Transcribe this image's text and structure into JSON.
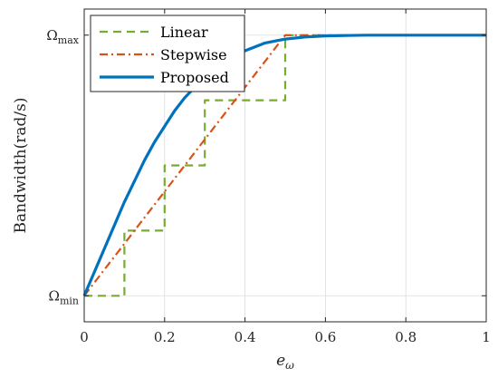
{
  "chart_data": {
    "type": "line",
    "title": "",
    "xlabel": "e",
    "xlabel_sub": "ω",
    "ylabel": "Bandwidth(rad/s)",
    "xlim": [
      0,
      1
    ],
    "ylim": [
      -0.1,
      1.1
    ],
    "xticks": [
      0,
      0.2,
      0.4,
      0.6,
      0.8,
      1
    ],
    "xtick_labels": [
      "0",
      "0.2",
      "0.4",
      "0.6",
      "0.8",
      "1"
    ],
    "yticks": [
      {
        "value": 0,
        "base": "Ω",
        "sub": "min"
      },
      {
        "value": 1,
        "base": "Ω",
        "sub": "max"
      }
    ],
    "grid": true,
    "legend_position": "top-left",
    "series": [
      {
        "name": "Linear",
        "color": "#77AC30",
        "style": "dashed",
        "x": [
          0,
          0.1,
          0.1,
          0.2,
          0.2,
          0.3,
          0.3,
          0.5,
          0.5,
          1.0
        ],
        "y": [
          0,
          0,
          0.25,
          0.25,
          0.5,
          0.5,
          0.75,
          0.75,
          1.0,
          1.0
        ]
      },
      {
        "name": "Stepwise",
        "color": "#D95319",
        "style": "dashdot",
        "x": [
          0,
          0.5,
          1.0
        ],
        "y": [
          0,
          1.0,
          1.0
        ]
      },
      {
        "name": "Proposed",
        "color": "#0072BD",
        "style": "solid",
        "x": [
          0,
          0.025,
          0.05,
          0.075,
          0.1,
          0.125,
          0.15,
          0.175,
          0.2,
          0.225,
          0.25,
          0.275,
          0.3,
          0.35,
          0.4,
          0.45,
          0.5,
          0.55,
          0.6,
          0.7,
          0.8,
          0.9,
          1.0
        ],
        "y": [
          0,
          0.09,
          0.18,
          0.27,
          0.36,
          0.44,
          0.52,
          0.59,
          0.65,
          0.71,
          0.76,
          0.8,
          0.84,
          0.9,
          0.94,
          0.97,
          0.985,
          0.993,
          0.997,
          1.0,
          1.0,
          1.0,
          1.0
        ]
      }
    ]
  }
}
